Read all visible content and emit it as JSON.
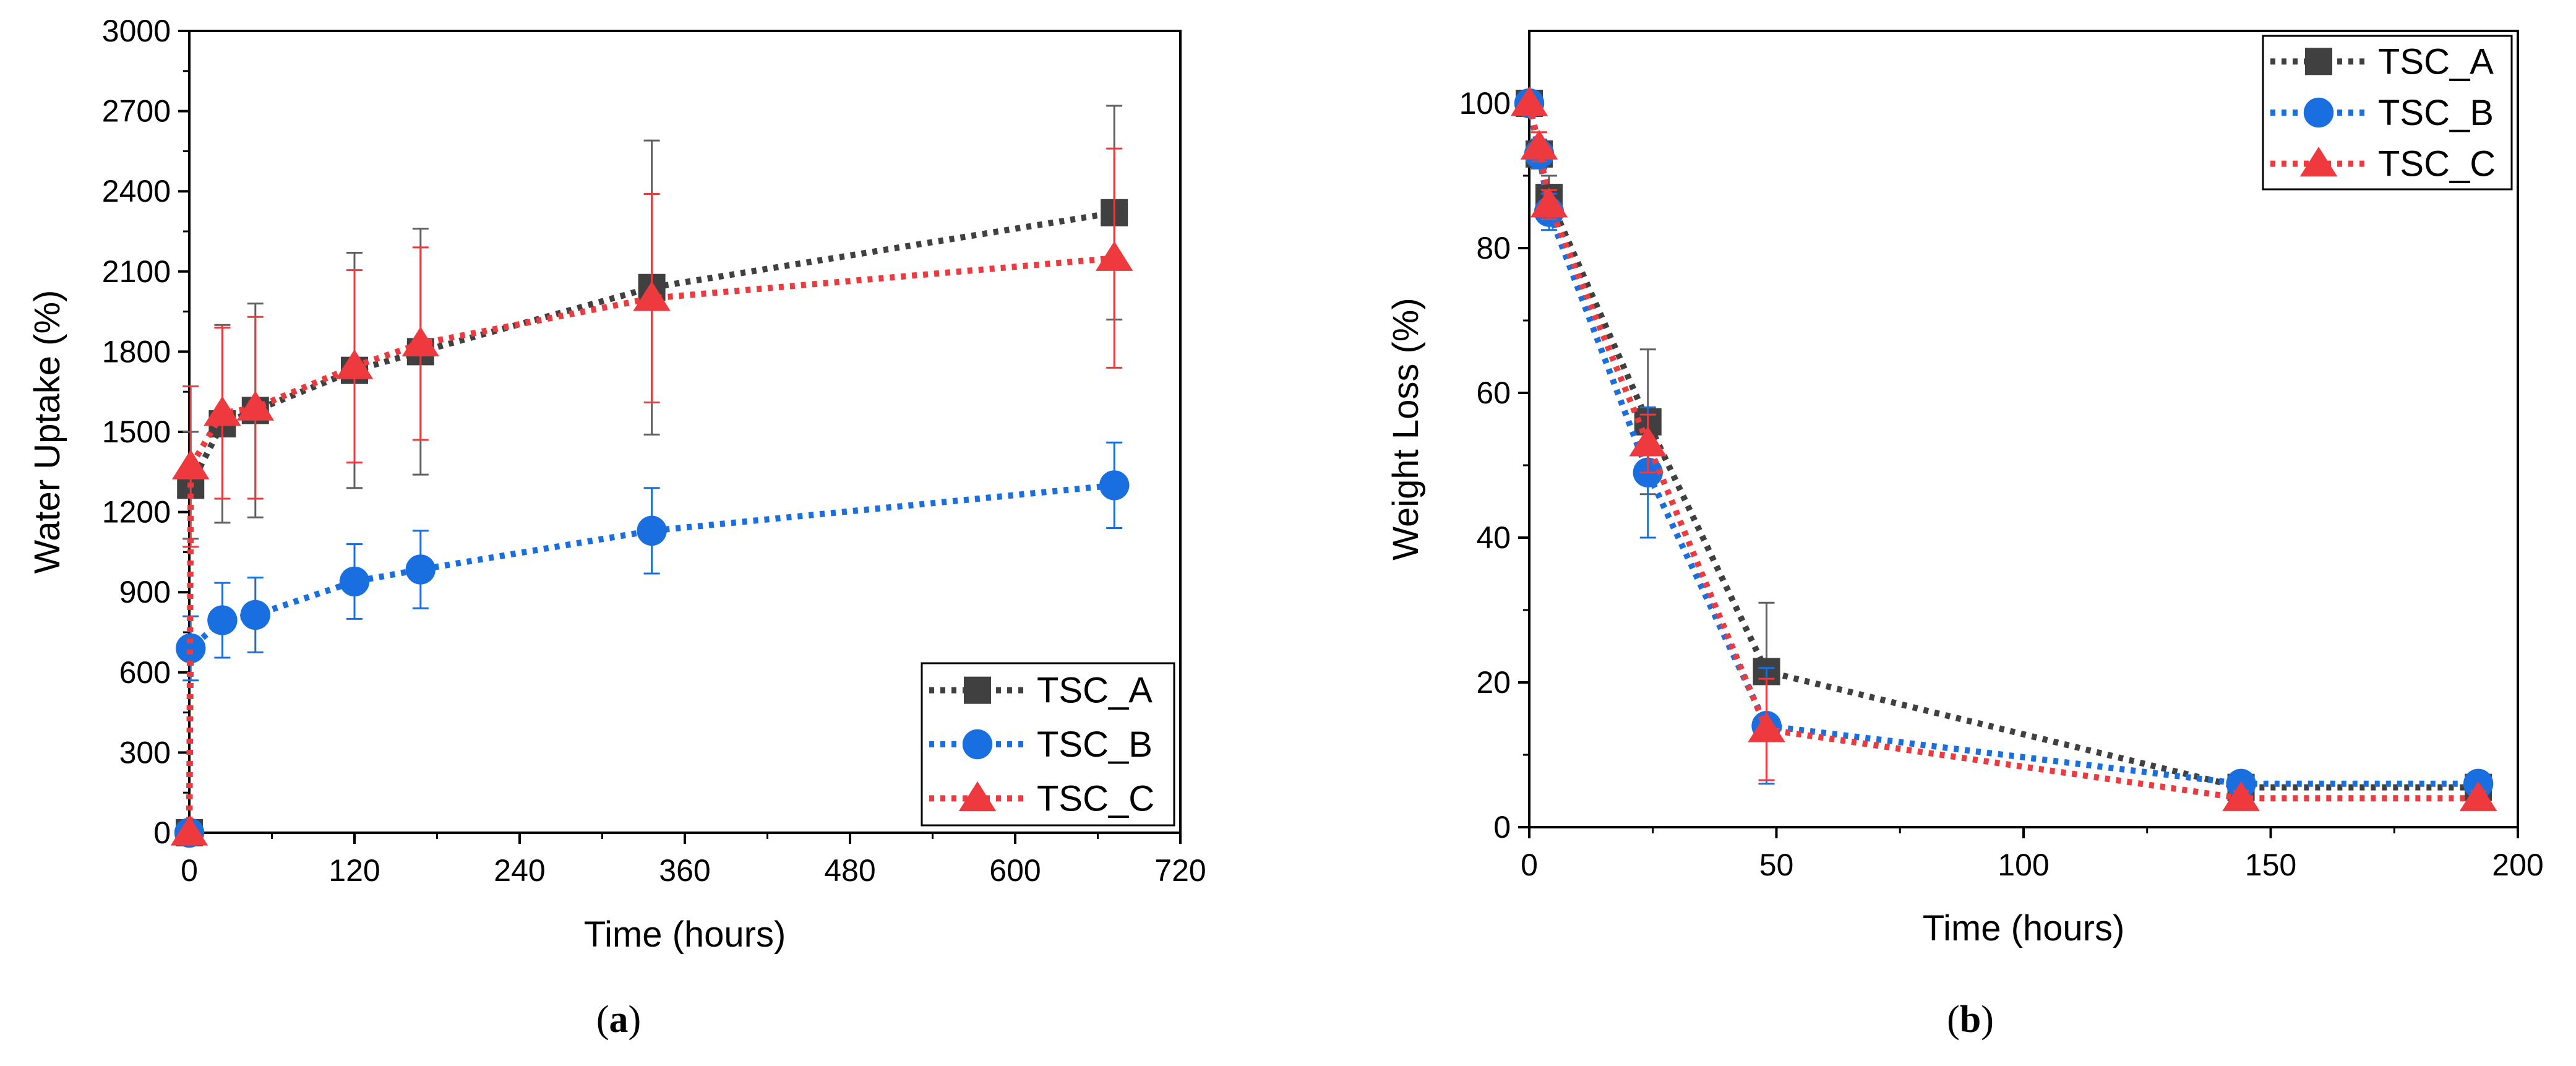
{
  "colors": {
    "TSC_A": "#404040",
    "TSC_B": "#1a6fe0",
    "TSC_C": "#ee3a3e",
    "error_A": "#606060"
  },
  "captions": {
    "a": "a",
    "b": "b"
  },
  "chart_data": [
    {
      "type": "line",
      "panel": "a",
      "xlabel": "Time (hours)",
      "ylabel": "Water Uptake (%)",
      "xlim": [
        0,
        720
      ],
      "ylim": [
        0,
        3000
      ],
      "xticks": [
        0,
        120,
        240,
        360,
        480,
        600,
        720
      ],
      "yticks": [
        0,
        300,
        600,
        900,
        1200,
        1500,
        1800,
        2100,
        2400,
        2700,
        3000
      ],
      "legend_position": "bottom-right",
      "grid": false,
      "series": [
        {
          "name": "TSC_A",
          "marker": "square",
          "x": [
            0,
            1,
            24,
            48,
            120,
            168,
            336,
            672
          ],
          "y": [
            0,
            1300,
            1530,
            1580,
            1730,
            1800,
            2040,
            2320
          ],
          "err": [
            0,
            200,
            370,
            400,
            440,
            460,
            550,
            400
          ]
        },
        {
          "name": "TSC_B",
          "marker": "circle",
          "x": [
            0,
            1,
            24,
            48,
            120,
            168,
            336,
            672
          ],
          "y": [
            0,
            690,
            795,
            815,
            940,
            985,
            1130,
            1300
          ],
          "err": [
            0,
            120,
            140,
            140,
            140,
            145,
            160,
            160
          ]
        },
        {
          "name": "TSC_C",
          "marker": "triangle",
          "x": [
            0,
            1,
            24,
            48,
            120,
            168,
            336,
            672
          ],
          "y": [
            0,
            1370,
            1570,
            1590,
            1745,
            1830,
            2000,
            2150
          ],
          "err": [
            0,
            300,
            320,
            340,
            360,
            360,
            390,
            410
          ]
        }
      ]
    },
    {
      "type": "line",
      "panel": "b",
      "xlabel": "Time (hours)",
      "ylabel": "Weight Loss (%)",
      "xlim": [
        0,
        200
      ],
      "ylim": [
        0,
        110
      ],
      "xticks": [
        0,
        50,
        100,
        150,
        200
      ],
      "yticks": [
        0,
        20,
        40,
        60,
        80,
        100
      ],
      "legend_position": "top-right",
      "grid": false,
      "series": [
        {
          "name": "TSC_A",
          "marker": "square",
          "x": [
            0,
            2,
            4,
            24,
            48,
            144,
            192
          ],
          "y": [
            100,
            93,
            87,
            56,
            21.5,
            5.5,
            5.5
          ],
          "err": [
            0,
            2,
            3,
            10,
            9.5,
            1,
            1
          ]
        },
        {
          "name": "TSC_B",
          "marker": "circle",
          "x": [
            0,
            2,
            4,
            24,
            48,
            144,
            192
          ],
          "y": [
            100,
            93,
            85,
            49,
            14,
            6,
            6
          ],
          "err": [
            0,
            2,
            2.5,
            9,
            8,
            1,
            1
          ]
        },
        {
          "name": "TSC_C",
          "marker": "triangle",
          "x": [
            0,
            2,
            4,
            24,
            48,
            144,
            192
          ],
          "y": [
            100,
            94,
            86,
            53,
            13.5,
            4,
            4
          ],
          "err": [
            0,
            2,
            2,
            4,
            7,
            1,
            1
          ]
        }
      ]
    }
  ]
}
